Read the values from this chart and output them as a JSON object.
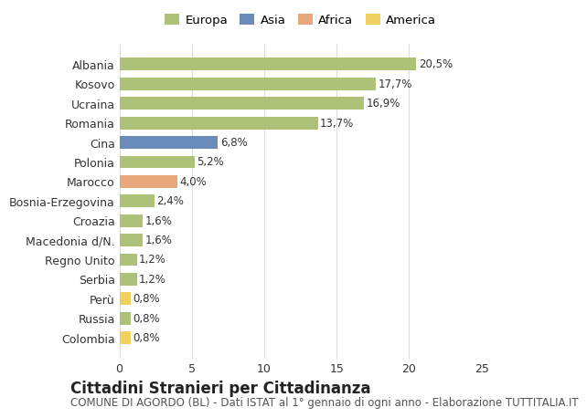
{
  "categories": [
    "Albania",
    "Kosovo",
    "Ucraina",
    "Romania",
    "Cina",
    "Polonia",
    "Marocco",
    "Bosnia-Erzegovina",
    "Croazia",
    "Macedonia d/N.",
    "Regno Unito",
    "Serbia",
    "Perù",
    "Russia",
    "Colombia"
  ],
  "values": [
    20.5,
    17.7,
    16.9,
    13.7,
    6.8,
    5.2,
    4.0,
    2.4,
    1.6,
    1.6,
    1.2,
    1.2,
    0.8,
    0.8,
    0.8
  ],
  "labels": [
    "20,5%",
    "17,7%",
    "16,9%",
    "13,7%",
    "6,8%",
    "5,2%",
    "4,0%",
    "2,4%",
    "1,6%",
    "1,6%",
    "1,2%",
    "1,2%",
    "0,8%",
    "0,8%",
    "0,8%"
  ],
  "colors": [
    "#adc178",
    "#adc178",
    "#adc178",
    "#adc178",
    "#6b8cba",
    "#adc178",
    "#e8a87c",
    "#adc178",
    "#adc178",
    "#adc178",
    "#adc178",
    "#adc178",
    "#f0d060",
    "#adc178",
    "#f0d060"
  ],
  "legend": {
    "Europa": "#adc178",
    "Asia": "#6b8cba",
    "Africa": "#e8a87c",
    "America": "#f0d060"
  },
  "xlim": [
    0,
    25
  ],
  "xticks": [
    0,
    5,
    10,
    15,
    20,
    25
  ],
  "title": "Cittadini Stranieri per Cittadinanza",
  "subtitle": "COMUNE DI AGORDO (BL) - Dati ISTAT al 1° gennaio di ogni anno - Elaborazione TUTTITALIA.IT",
  "background_color": "#ffffff",
  "bar_height": 0.65,
  "label_fontsize": 8.5,
  "tick_fontsize": 9,
  "title_fontsize": 12,
  "subtitle_fontsize": 8.5
}
